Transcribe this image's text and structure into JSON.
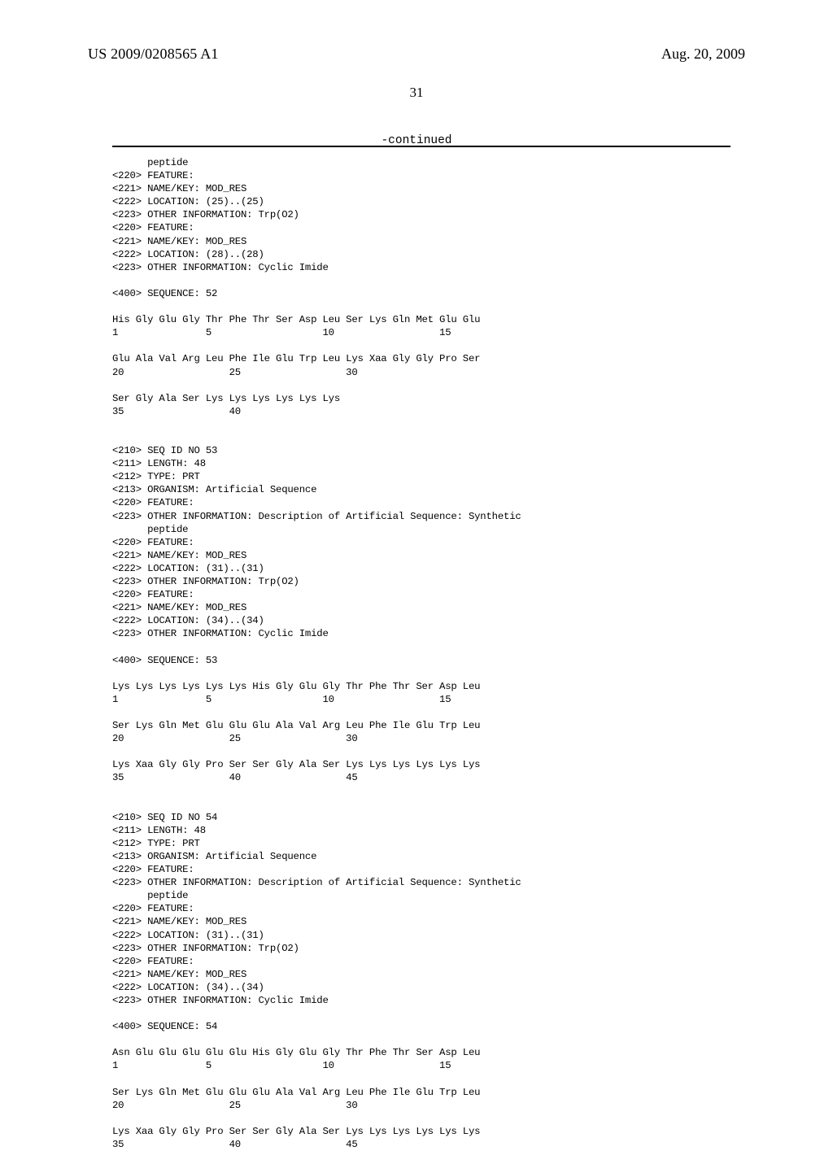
{
  "header": {
    "pub_number": "US 2009/0208565 A1",
    "pub_date": "Aug. 20, 2009"
  },
  "page_number": "31",
  "continued_label": "-continued",
  "seq_text": "      peptide\n<220> FEATURE:\n<221> NAME/KEY: MOD_RES\n<222> LOCATION: (25)..(25)\n<223> OTHER INFORMATION: Trp(O2)\n<220> FEATURE:\n<221> NAME/KEY: MOD_RES\n<222> LOCATION: (28)..(28)\n<223> OTHER INFORMATION: Cyclic Imide\n\n<400> SEQUENCE: 52\n\nHis Gly Glu Gly Thr Phe Thr Ser Asp Leu Ser Lys Gln Met Glu Glu\n1               5                   10                  15\n\nGlu Ala Val Arg Leu Phe Ile Glu Trp Leu Lys Xaa Gly Gly Pro Ser\n20                  25                  30\n\nSer Gly Ala Ser Lys Lys Lys Lys Lys Lys\n35                  40\n\n\n<210> SEQ ID NO 53\n<211> LENGTH: 48\n<212> TYPE: PRT\n<213> ORGANISM: Artificial Sequence\n<220> FEATURE:\n<223> OTHER INFORMATION: Description of Artificial Sequence: Synthetic\n      peptide\n<220> FEATURE:\n<221> NAME/KEY: MOD_RES\n<222> LOCATION: (31)..(31)\n<223> OTHER INFORMATION: Trp(O2)\n<220> FEATURE:\n<221> NAME/KEY: MOD_RES\n<222> LOCATION: (34)..(34)\n<223> OTHER INFORMATION: Cyclic Imide\n\n<400> SEQUENCE: 53\n\nLys Lys Lys Lys Lys Lys His Gly Glu Gly Thr Phe Thr Ser Asp Leu\n1               5                   10                  15\n\nSer Lys Gln Met Glu Glu Glu Ala Val Arg Leu Phe Ile Glu Trp Leu\n20                  25                  30\n\nLys Xaa Gly Gly Pro Ser Ser Gly Ala Ser Lys Lys Lys Lys Lys Lys\n35                  40                  45\n\n\n<210> SEQ ID NO 54\n<211> LENGTH: 48\n<212> TYPE: PRT\n<213> ORGANISM: Artificial Sequence\n<220> FEATURE:\n<223> OTHER INFORMATION: Description of Artificial Sequence: Synthetic\n      peptide\n<220> FEATURE:\n<221> NAME/KEY: MOD_RES\n<222> LOCATION: (31)..(31)\n<223> OTHER INFORMATION: Trp(O2)\n<220> FEATURE:\n<221> NAME/KEY: MOD_RES\n<222> LOCATION: (34)..(34)\n<223> OTHER INFORMATION: Cyclic Imide\n\n<400> SEQUENCE: 54\n\nAsn Glu Glu Glu Glu Glu His Gly Glu Gly Thr Phe Thr Ser Asp Leu\n1               5                   10                  15\n\nSer Lys Gln Met Glu Glu Glu Ala Val Arg Leu Phe Ile Glu Trp Leu\n20                  25                  30\n\nLys Xaa Gly Gly Pro Ser Ser Gly Ala Ser Lys Lys Lys Lys Lys Lys\n35                  40                  45"
}
